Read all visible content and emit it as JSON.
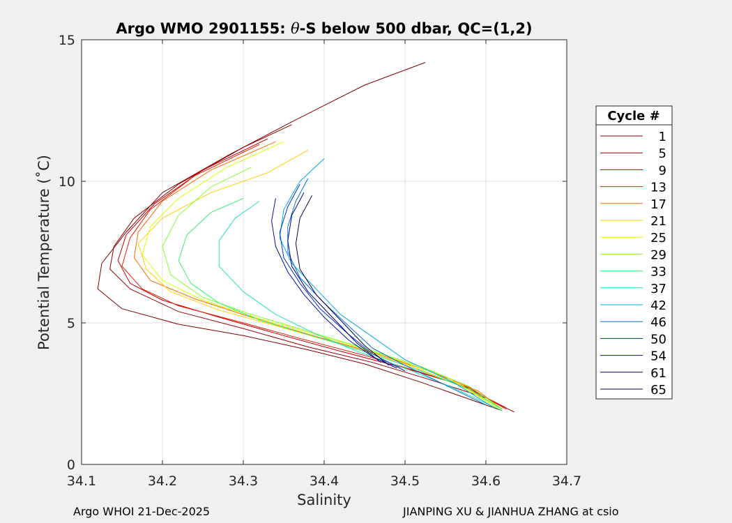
{
  "chart_data": {
    "type": "line",
    "title_prefix": "Argo WMO 2901155: ",
    "title_theta": "θ",
    "title_suffix": "-S below 500 dbar,  QC=(1,2)",
    "xlabel": "Salinity",
    "ylabel": "Potential Temperature (˚C)",
    "xlim": [
      34.1,
      34.7
    ],
    "ylim": [
      0,
      15
    ],
    "xticks": [
      "34.1",
      "34.2",
      "34.3",
      "34.4",
      "34.5",
      "34.6",
      "34.7"
    ],
    "yticks": [
      "0",
      "5",
      "10",
      "15"
    ],
    "grid": true,
    "legend_title": "Cycle #",
    "legend_position": "outside-right",
    "series": [
      {
        "name": "1",
        "color": "#800000",
        "s": [
          34.525,
          34.45,
          34.36,
          34.28,
          34.2,
          34.155,
          34.125,
          34.12,
          34.15,
          34.22,
          34.3,
          34.38,
          34.45,
          34.52,
          34.58,
          34.62
        ],
        "t": [
          14.2,
          13.4,
          12.1,
          10.9,
          9.6,
          8.2,
          7.1,
          6.2,
          5.5,
          4.95,
          4.55,
          4.05,
          3.55,
          2.9,
          2.3,
          1.9
        ]
      },
      {
        "name": "5",
        "color": "#9a0000",
        "s": [
          34.36,
          34.3,
          34.22,
          34.165,
          34.14,
          34.135,
          34.16,
          34.22,
          34.3,
          34.38,
          34.46,
          34.53,
          34.6,
          34.635
        ],
        "t": [
          12.0,
          11.2,
          9.9,
          8.7,
          7.7,
          6.9,
          6.2,
          5.4,
          4.8,
          4.15,
          3.6,
          3.0,
          2.35,
          1.85
        ]
      },
      {
        "name": "9",
        "color": "#c20000",
        "s": [
          34.33,
          34.25,
          34.19,
          34.155,
          34.145,
          34.16,
          34.2,
          34.27,
          34.35,
          34.42,
          34.5,
          34.57,
          34.625
        ],
        "t": [
          11.5,
          10.4,
          9.2,
          8.1,
          7.2,
          6.4,
          5.8,
          5.2,
          4.55,
          4.0,
          3.4,
          2.8,
          2.0
        ]
      },
      {
        "name": "13",
        "color": "#e81a00",
        "s": [
          34.32,
          34.24,
          34.185,
          34.16,
          34.15,
          34.175,
          34.22,
          34.3,
          34.37,
          34.45,
          34.52,
          34.58,
          34.625
        ],
        "t": [
          11.3,
          10.2,
          9.0,
          8.0,
          7.0,
          6.2,
          5.6,
          5.0,
          4.45,
          3.85,
          3.25,
          2.7,
          1.95
        ]
      },
      {
        "name": "17",
        "color": "#ff6a00",
        "s": [
          34.34,
          34.26,
          34.2,
          34.17,
          34.165,
          34.185,
          34.24,
          34.31,
          34.38,
          34.46,
          34.53,
          34.59,
          34.62
        ],
        "t": [
          11.4,
          10.4,
          9.3,
          8.2,
          7.3,
          6.5,
          5.85,
          5.2,
          4.6,
          3.95,
          3.3,
          2.6,
          1.95
        ]
      },
      {
        "name": "21",
        "color": "#ffd000",
        "s": [
          34.38,
          34.33,
          34.26,
          34.2,
          34.17,
          34.18,
          34.21,
          34.27,
          34.34,
          34.42,
          34.5,
          34.57,
          34.62
        ],
        "t": [
          11.1,
          10.3,
          9.6,
          8.7,
          7.8,
          6.9,
          6.1,
          5.45,
          4.9,
          4.25,
          3.55,
          2.8,
          1.9
        ]
      },
      {
        "name": "25",
        "color": "#d8ff00",
        "s": [
          34.35,
          34.28,
          34.22,
          34.185,
          34.175,
          34.2,
          34.25,
          34.32,
          34.4,
          34.48,
          34.55,
          34.62
        ],
        "t": [
          11.4,
          10.5,
          9.4,
          8.4,
          7.4,
          6.5,
          5.8,
          5.15,
          4.5,
          3.8,
          3.1,
          1.9
        ]
      },
      {
        "name": "29",
        "color": "#80ff30",
        "s": [
          34.31,
          34.26,
          34.22,
          34.2,
          34.21,
          34.25,
          34.31,
          34.38,
          34.45,
          34.52,
          34.58,
          34.62
        ],
        "t": [
          10.5,
          9.8,
          8.8,
          7.7,
          6.7,
          5.9,
          5.3,
          4.7,
          4.1,
          3.45,
          2.75,
          1.95
        ]
      },
      {
        "name": "33",
        "color": "#30f070",
        "s": [
          34.3,
          34.26,
          34.23,
          34.22,
          34.235,
          34.27,
          34.32,
          34.39,
          34.46,
          34.52,
          34.58,
          34.62
        ],
        "t": [
          9.4,
          8.9,
          8.1,
          7.2,
          6.4,
          5.7,
          5.1,
          4.5,
          3.9,
          3.3,
          2.65,
          1.95
        ]
      },
      {
        "name": "37",
        "color": "#20e0c0",
        "s": [
          34.32,
          34.29,
          34.27,
          34.27,
          34.3,
          34.34,
          34.39,
          34.44,
          34.5,
          34.56,
          34.62
        ],
        "t": [
          9.3,
          8.7,
          7.9,
          7.0,
          6.1,
          5.3,
          4.6,
          4.0,
          3.4,
          2.7,
          1.9
        ]
      },
      {
        "name": "42",
        "color": "#00a8f0",
        "s": [
          34.4,
          34.37,
          34.35,
          34.345,
          34.36,
          34.39,
          34.42,
          34.46,
          34.5,
          34.56,
          34.61
        ],
        "t": [
          10.8,
          10.0,
          9.0,
          8.0,
          7.1,
          6.2,
          5.3,
          4.5,
          3.7,
          2.9,
          2.0
        ]
      },
      {
        "name": "46",
        "color": "#0070e0",
        "s": [
          34.38,
          34.365,
          34.355,
          34.355,
          34.37,
          34.4,
          34.43,
          34.46,
          34.5,
          34.55,
          34.6
        ],
        "t": [
          10.1,
          9.3,
          8.4,
          7.5,
          6.6,
          5.7,
          4.9,
          4.1,
          3.5,
          2.8,
          2.1
        ]
      },
      {
        "name": "50",
        "color": "#0030c8",
        "s": [
          34.37,
          34.355,
          34.345,
          34.35,
          34.37,
          34.395,
          34.43,
          34.46,
          34.5
        ],
        "t": [
          9.9,
          9.1,
          8.2,
          7.3,
          6.4,
          5.5,
          4.6,
          3.9,
          3.3
        ]
      },
      {
        "name": "54",
        "color": "#0010a0",
        "s": [
          34.34,
          34.335,
          34.34,
          34.355,
          34.375,
          34.4,
          34.43,
          34.46,
          34.49
        ],
        "t": [
          9.4,
          8.6,
          7.7,
          6.8,
          6.0,
          5.2,
          4.4,
          3.8,
          3.4
        ]
      },
      {
        "name": "61",
        "color": "#000070",
        "s": [
          34.375,
          34.36,
          34.355,
          34.36,
          34.38,
          34.41,
          34.44,
          34.47
        ],
        "t": [
          9.6,
          8.8,
          7.9,
          7.0,
          6.1,
          5.2,
          4.3,
          3.6
        ]
      },
      {
        "name": "65",
        "color": "#000050",
        "s": [
          34.385,
          34.37,
          34.365,
          34.37,
          34.39,
          34.42,
          34.45,
          34.48
        ],
        "t": [
          9.5,
          8.7,
          7.8,
          6.9,
          6.0,
          5.1,
          4.2,
          3.5
        ]
      }
    ]
  },
  "footer": {
    "left": "Argo WHOI 21-Dec-2025",
    "right": "JIANPING XU & JIANHUA ZHANG at csio"
  }
}
